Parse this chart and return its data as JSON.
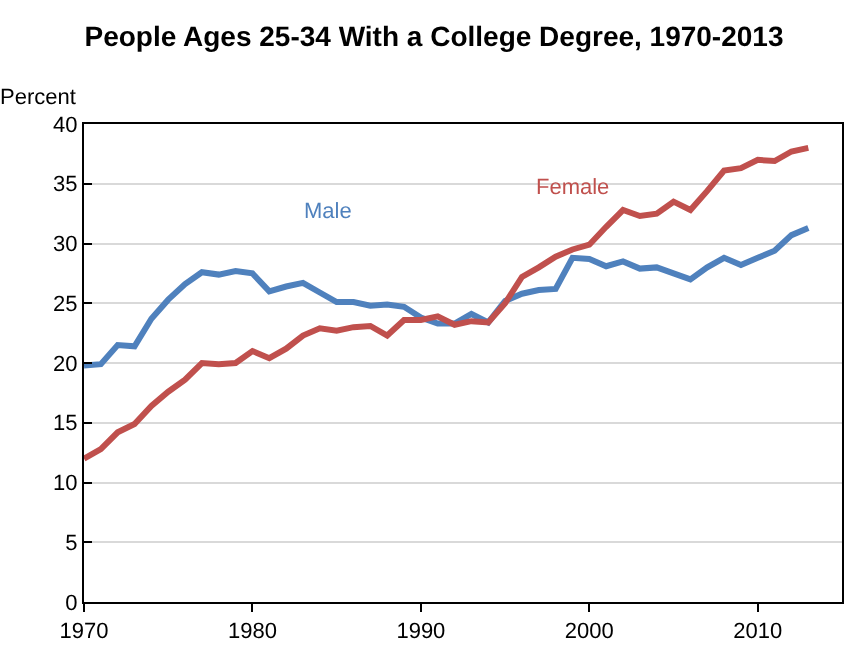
{
  "chart_data": {
    "type": "line",
    "title": "People Ages 25-34 With a College Degree, 1970-2013",
    "ylabel": "Percent",
    "x": [
      1970,
      1971,
      1972,
      1973,
      1974,
      1975,
      1976,
      1977,
      1978,
      1979,
      1980,
      1981,
      1982,
      1983,
      1984,
      1985,
      1986,
      1987,
      1988,
      1989,
      1990,
      1991,
      1992,
      1993,
      1994,
      1995,
      1996,
      1997,
      1998,
      1999,
      2000,
      2001,
      2002,
      2003,
      2004,
      2005,
      2006,
      2007,
      2008,
      2009,
      2010,
      2011,
      2012,
      2013
    ],
    "series": [
      {
        "name": "Male",
        "color": "#4f81bd",
        "values": [
          19.8,
          19.9,
          21.5,
          21.4,
          23.7,
          25.3,
          26.6,
          27.6,
          27.4,
          27.7,
          27.5,
          26.0,
          26.4,
          26.7,
          25.9,
          25.1,
          25.1,
          24.8,
          24.9,
          24.7,
          23.8,
          23.3,
          23.3,
          24.1,
          23.4,
          25.2,
          25.8,
          26.1,
          26.2,
          28.8,
          28.7,
          28.1,
          28.5,
          27.9,
          28.0,
          27.5,
          27.0,
          28.0,
          28.8,
          28.2,
          28.8,
          29.4,
          30.7,
          31.3
        ]
      },
      {
        "name": "Female",
        "color": "#c0504d",
        "values": [
          12.0,
          12.8,
          14.2,
          14.9,
          16.4,
          17.6,
          18.6,
          20.0,
          19.9,
          20.0,
          21.0,
          20.4,
          21.2,
          22.3,
          22.9,
          22.7,
          23.0,
          23.1,
          22.3,
          23.6,
          23.6,
          23.9,
          23.2,
          23.5,
          23.4,
          25.0,
          27.2,
          28.0,
          28.9,
          29.5,
          29.9,
          31.4,
          32.8,
          32.3,
          32.5,
          33.5,
          32.8,
          34.4,
          36.1,
          36.3,
          37.0,
          36.9,
          37.7,
          38.0
        ]
      }
    ],
    "xlim": [
      1970,
      2015
    ],
    "xticks": [
      1970,
      1980,
      1990,
      2000,
      2010
    ],
    "ylim": [
      0,
      40
    ],
    "yticks": [
      0,
      5,
      10,
      15,
      20,
      25,
      30,
      35,
      40
    ],
    "grid": "y",
    "legend": false,
    "line_style": "solid",
    "marker": "none"
  }
}
